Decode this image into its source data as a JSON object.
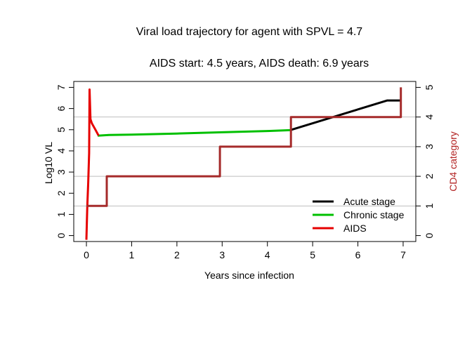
{
  "chart_data": {
    "type": "line",
    "title": "Viral load trajectory for agent with SPVL = 4.7",
    "subtitle": "AIDS start: 4.5 years, AIDS death: 6.9 years",
    "xlabel": "Years since infection",
    "ylabel": "Log10 VL",
    "ylabel_right": "CD4 category",
    "xlim": [
      -0.28,
      7.28
    ],
    "ylim": [
      -0.28,
      7.28
    ],
    "ylim_right": [
      -0.2,
      5.2
    ],
    "x_ticks": [
      0,
      1,
      2,
      3,
      4,
      5,
      6,
      7
    ],
    "y_ticks": [
      0,
      1,
      2,
      3,
      4,
      5,
      6,
      7
    ],
    "y_ticks_right": [
      0,
      1,
      2,
      3,
      4,
      5
    ],
    "grid": "horizontal lines at CD4 categories 1-4",
    "legend_position": "bottom-right",
    "legend": [
      {
        "label": "Acute stage",
        "color": "#000000"
      },
      {
        "label": "Chronic stage",
        "color": "#00c000"
      },
      {
        "label": "AIDS",
        "color": "#e60000"
      }
    ],
    "series": [
      {
        "stage": "acute",
        "color": "#000000",
        "axis": "left",
        "points": [
          [
            4.5,
            4.98
          ],
          [
            6.65,
            6.38
          ],
          [
            6.95,
            6.38
          ]
        ]
      },
      {
        "stage": "chronic",
        "color": "#00c000",
        "axis": "left",
        "points": [
          [
            0.25,
            4.72
          ],
          [
            0.5,
            4.75
          ],
          [
            1.0,
            4.77
          ],
          [
            2.0,
            4.82
          ],
          [
            3.0,
            4.88
          ],
          [
            4.0,
            4.94
          ],
          [
            4.5,
            4.98
          ]
        ]
      },
      {
        "stage": "aids",
        "color": "#e60000",
        "axis": "left",
        "points": [
          [
            0.0,
            -0.2
          ],
          [
            0.02,
            1.4
          ],
          [
            0.04,
            2.5
          ],
          [
            0.06,
            3.9
          ],
          [
            0.07,
            6.9
          ],
          [
            0.09,
            5.5
          ],
          [
            0.12,
            5.3
          ],
          [
            0.2,
            5.0
          ],
          [
            0.27,
            4.72
          ]
        ]
      },
      {
        "stage": "cd4",
        "color": "#a52a2a",
        "axis": "right",
        "points": [
          [
            0.0,
            1.0
          ],
          [
            0.45,
            1.0
          ],
          [
            0.45,
            2.0
          ],
          [
            2.95,
            2.0
          ],
          [
            2.95,
            3.0
          ],
          [
            4.52,
            3.0
          ],
          [
            4.52,
            4.0
          ],
          [
            6.95,
            4.0
          ],
          [
            6.95,
            5.0
          ]
        ]
      }
    ]
  }
}
